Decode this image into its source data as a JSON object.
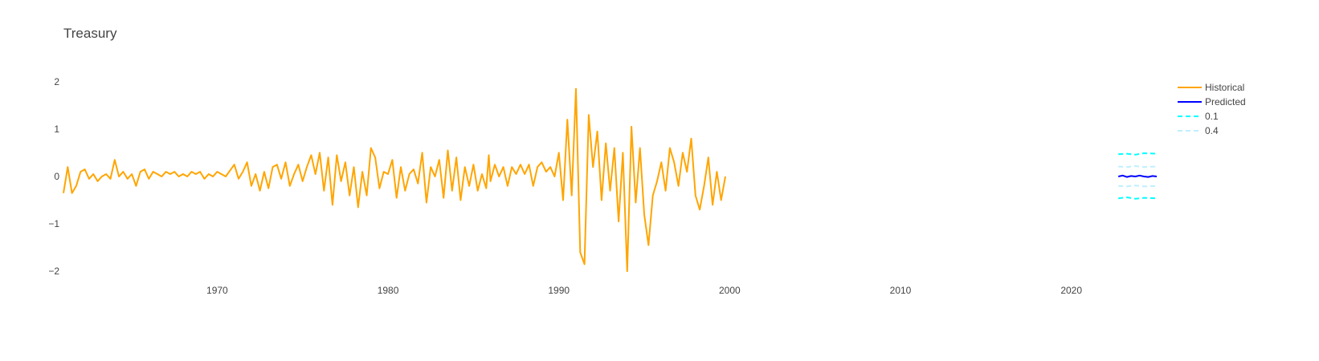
{
  "chart_data": {
    "type": "line",
    "title": "Treasury",
    "xlabel": "",
    "ylabel": "",
    "xlim": [
      1961,
      2025
    ],
    "ylim": [
      -2.15,
      2.2
    ],
    "x_ticks": [
      1970,
      1980,
      1990,
      2000,
      2010,
      2020
    ],
    "y_ticks": [
      2,
      1,
      0,
      -1,
      -2
    ],
    "grid": false,
    "legend_position": "top-right",
    "series": [
      {
        "name": "Historical",
        "color": "#FFA500",
        "dash": "solid",
        "points": [
          [
            1961.0,
            -0.35
          ],
          [
            1961.25,
            0.2
          ],
          [
            1961.5,
            -0.35
          ],
          [
            1961.75,
            -0.2
          ],
          [
            1962.0,
            0.1
          ],
          [
            1962.25,
            0.15
          ],
          [
            1962.5,
            -0.05
          ],
          [
            1962.75,
            0.05
          ],
          [
            1963.0,
            -0.1
          ],
          [
            1963.25,
            0.0
          ],
          [
            1963.5,
            0.05
          ],
          [
            1963.75,
            -0.05
          ],
          [
            1964.0,
            0.35
          ],
          [
            1964.25,
            0.0
          ],
          [
            1964.5,
            0.1
          ],
          [
            1964.75,
            -0.05
          ],
          [
            1965.0,
            0.05
          ],
          [
            1965.25,
            -0.2
          ],
          [
            1965.5,
            0.1
          ],
          [
            1965.75,
            0.15
          ],
          [
            1966.0,
            -0.05
          ],
          [
            1966.25,
            0.1
          ],
          [
            1966.5,
            0.05
          ],
          [
            1966.75,
            0.0
          ],
          [
            1967.0,
            0.1
          ],
          [
            1967.25,
            0.05
          ],
          [
            1967.5,
            0.1
          ],
          [
            1967.75,
            0.0
          ],
          [
            1968.0,
            0.05
          ],
          [
            1968.25,
            0.0
          ],
          [
            1968.5,
            0.1
          ],
          [
            1968.75,
            0.05
          ],
          [
            1969.0,
            0.1
          ],
          [
            1969.25,
            -0.05
          ],
          [
            1969.5,
            0.05
          ],
          [
            1969.75,
            0.0
          ],
          [
            1970.0,
            0.1
          ],
          [
            1970.5,
            0.0
          ],
          [
            1971.0,
            0.25
          ],
          [
            1971.25,
            -0.05
          ],
          [
            1971.5,
            0.1
          ],
          [
            1971.75,
            0.3
          ],
          [
            1972.0,
            -0.2
          ],
          [
            1972.25,
            0.05
          ],
          [
            1972.5,
            -0.3
          ],
          [
            1972.75,
            0.1
          ],
          [
            1973.0,
            -0.25
          ],
          [
            1973.25,
            0.2
          ],
          [
            1973.5,
            0.25
          ],
          [
            1973.75,
            -0.05
          ],
          [
            1974.0,
            0.3
          ],
          [
            1974.25,
            -0.2
          ],
          [
            1974.5,
            0.05
          ],
          [
            1974.75,
            0.25
          ],
          [
            1975.0,
            -0.1
          ],
          [
            1975.25,
            0.2
          ],
          [
            1975.5,
            0.45
          ],
          [
            1975.75,
            0.05
          ],
          [
            1976.0,
            0.5
          ],
          [
            1976.25,
            -0.3
          ],
          [
            1976.5,
            0.4
          ],
          [
            1976.75,
            -0.6
          ],
          [
            1977.0,
            0.45
          ],
          [
            1977.25,
            -0.1
          ],
          [
            1977.5,
            0.3
          ],
          [
            1977.75,
            -0.4
          ],
          [
            1978.0,
            0.2
          ],
          [
            1978.25,
            -0.65
          ],
          [
            1978.5,
            0.1
          ],
          [
            1978.75,
            -0.4
          ],
          [
            1979.0,
            0.6
          ],
          [
            1979.25,
            0.4
          ],
          [
            1979.5,
            -0.25
          ],
          [
            1979.75,
            0.1
          ],
          [
            1980.0,
            0.05
          ],
          [
            1980.25,
            0.35
          ],
          [
            1980.5,
            -0.45
          ],
          [
            1980.75,
            0.2
          ],
          [
            1981.0,
            -0.3
          ],
          [
            1981.25,
            0.05
          ],
          [
            1981.5,
            0.15
          ],
          [
            1981.75,
            -0.15
          ],
          [
            1982.0,
            0.5
          ],
          [
            1982.25,
            -0.55
          ],
          [
            1982.5,
            0.2
          ],
          [
            1982.75,
            0.0
          ],
          [
            1983.0,
            0.35
          ],
          [
            1983.25,
            -0.45
          ],
          [
            1983.5,
            0.55
          ],
          [
            1983.75,
            -0.3
          ],
          [
            1984.0,
            0.4
          ],
          [
            1984.25,
            -0.5
          ],
          [
            1984.5,
            0.2
          ],
          [
            1984.75,
            -0.2
          ],
          [
            1985.0,
            0.25
          ],
          [
            1985.25,
            -0.3
          ],
          [
            1985.5,
            0.05
          ],
          [
            1985.75,
            -0.25
          ],
          [
            1985.9,
            0.45
          ],
          [
            1986.0,
            -0.1
          ],
          [
            1986.25,
            0.25
          ],
          [
            1986.5,
            0.0
          ],
          [
            1986.75,
            0.2
          ],
          [
            1987.0,
            -0.2
          ],
          [
            1987.25,
            0.2
          ],
          [
            1987.5,
            0.05
          ],
          [
            1987.75,
            0.25
          ],
          [
            1988.0,
            0.05
          ],
          [
            1988.25,
            0.25
          ],
          [
            1988.5,
            -0.2
          ],
          [
            1988.75,
            0.2
          ],
          [
            1989.0,
            0.3
          ],
          [
            1989.25,
            0.1
          ],
          [
            1989.5,
            0.2
          ],
          [
            1989.75,
            0.0
          ],
          [
            1990.0,
            0.5
          ],
          [
            1990.25,
            -0.5
          ],
          [
            1990.5,
            1.2
          ],
          [
            1990.75,
            -0.4
          ],
          [
            1991.0,
            1.85
          ],
          [
            1991.25,
            -1.6
          ],
          [
            1991.5,
            -1.85
          ],
          [
            1991.75,
            1.3
          ],
          [
            1992.0,
            0.2
          ],
          [
            1992.25,
            0.95
          ],
          [
            1992.5,
            -0.5
          ],
          [
            1992.75,
            0.7
          ],
          [
            1993.0,
            -0.3
          ],
          [
            1993.25,
            0.6
          ],
          [
            1993.5,
            -0.95
          ],
          [
            1993.75,
            0.5
          ],
          [
            1994.0,
            -2.0
          ],
          [
            1994.25,
            1.05
          ],
          [
            1994.5,
            -0.55
          ],
          [
            1994.75,
            0.6
          ],
          [
            1995.0,
            -0.8
          ],
          [
            1995.25,
            -1.45
          ],
          [
            1995.5,
            -0.4
          ],
          [
            1995.75,
            -0.1
          ],
          [
            1996.0,
            0.3
          ],
          [
            1996.25,
            -0.3
          ],
          [
            1996.5,
            0.6
          ],
          [
            1996.75,
            0.3
          ],
          [
            1997.0,
            -0.2
          ],
          [
            1997.25,
            0.5
          ],
          [
            1997.5,
            0.1
          ],
          [
            1997.75,
            0.8
          ],
          [
            1998.0,
            -0.4
          ],
          [
            1998.25,
            -0.7
          ],
          [
            1998.5,
            -0.2
          ],
          [
            1998.75,
            0.4
          ],
          [
            1999.0,
            -0.6
          ],
          [
            1999.25,
            0.1
          ],
          [
            1999.5,
            -0.5
          ],
          [
            1999.75,
            0.0
          ]
        ]
      },
      {
        "name": "Predicted",
        "color": "#0000FF",
        "dash": "solid",
        "points": [
          [
            2022.75,
            0.0
          ],
          [
            2023.0,
            0.02
          ],
          [
            2023.25,
            -0.01
          ],
          [
            2023.5,
            0.01
          ],
          [
            2023.75,
            0.0
          ],
          [
            2024.0,
            0.02
          ],
          [
            2024.25,
            0.0
          ],
          [
            2024.5,
            -0.01
          ],
          [
            2024.75,
            0.01
          ],
          [
            2025.0,
            0.0
          ]
        ]
      },
      {
        "name": "0.1",
        "color": "#00FFFF",
        "dash": "dash",
        "points": [
          [
            2022.75,
            0.47
          ],
          [
            2023.25,
            0.48
          ],
          [
            2023.75,
            0.46
          ],
          [
            2024.25,
            0.49
          ],
          [
            2025.0,
            0.48
          ]
        ]
      },
      {
        "name": "",
        "color": "#00FFFF",
        "dash": "dash",
        "points": [
          [
            2022.75,
            -0.46
          ],
          [
            2023.25,
            -0.44
          ],
          [
            2023.75,
            -0.47
          ],
          [
            2024.25,
            -0.45
          ],
          [
            2025.0,
            -0.46
          ]
        ]
      },
      {
        "name": "0.4",
        "color": "#BFEFFF",
        "dash": "dash",
        "points": [
          [
            2022.75,
            0.21
          ],
          [
            2023.25,
            0.2
          ],
          [
            2023.75,
            0.22
          ],
          [
            2024.25,
            0.2
          ],
          [
            2025.0,
            0.21
          ]
        ]
      },
      {
        "name": "",
        "color": "#BFEFFF",
        "dash": "dash",
        "points": [
          [
            2022.75,
            -0.2
          ],
          [
            2023.25,
            -0.21
          ],
          [
            2023.75,
            -0.19
          ],
          [
            2024.25,
            -0.21
          ],
          [
            2025.0,
            -0.2
          ]
        ]
      }
    ]
  }
}
